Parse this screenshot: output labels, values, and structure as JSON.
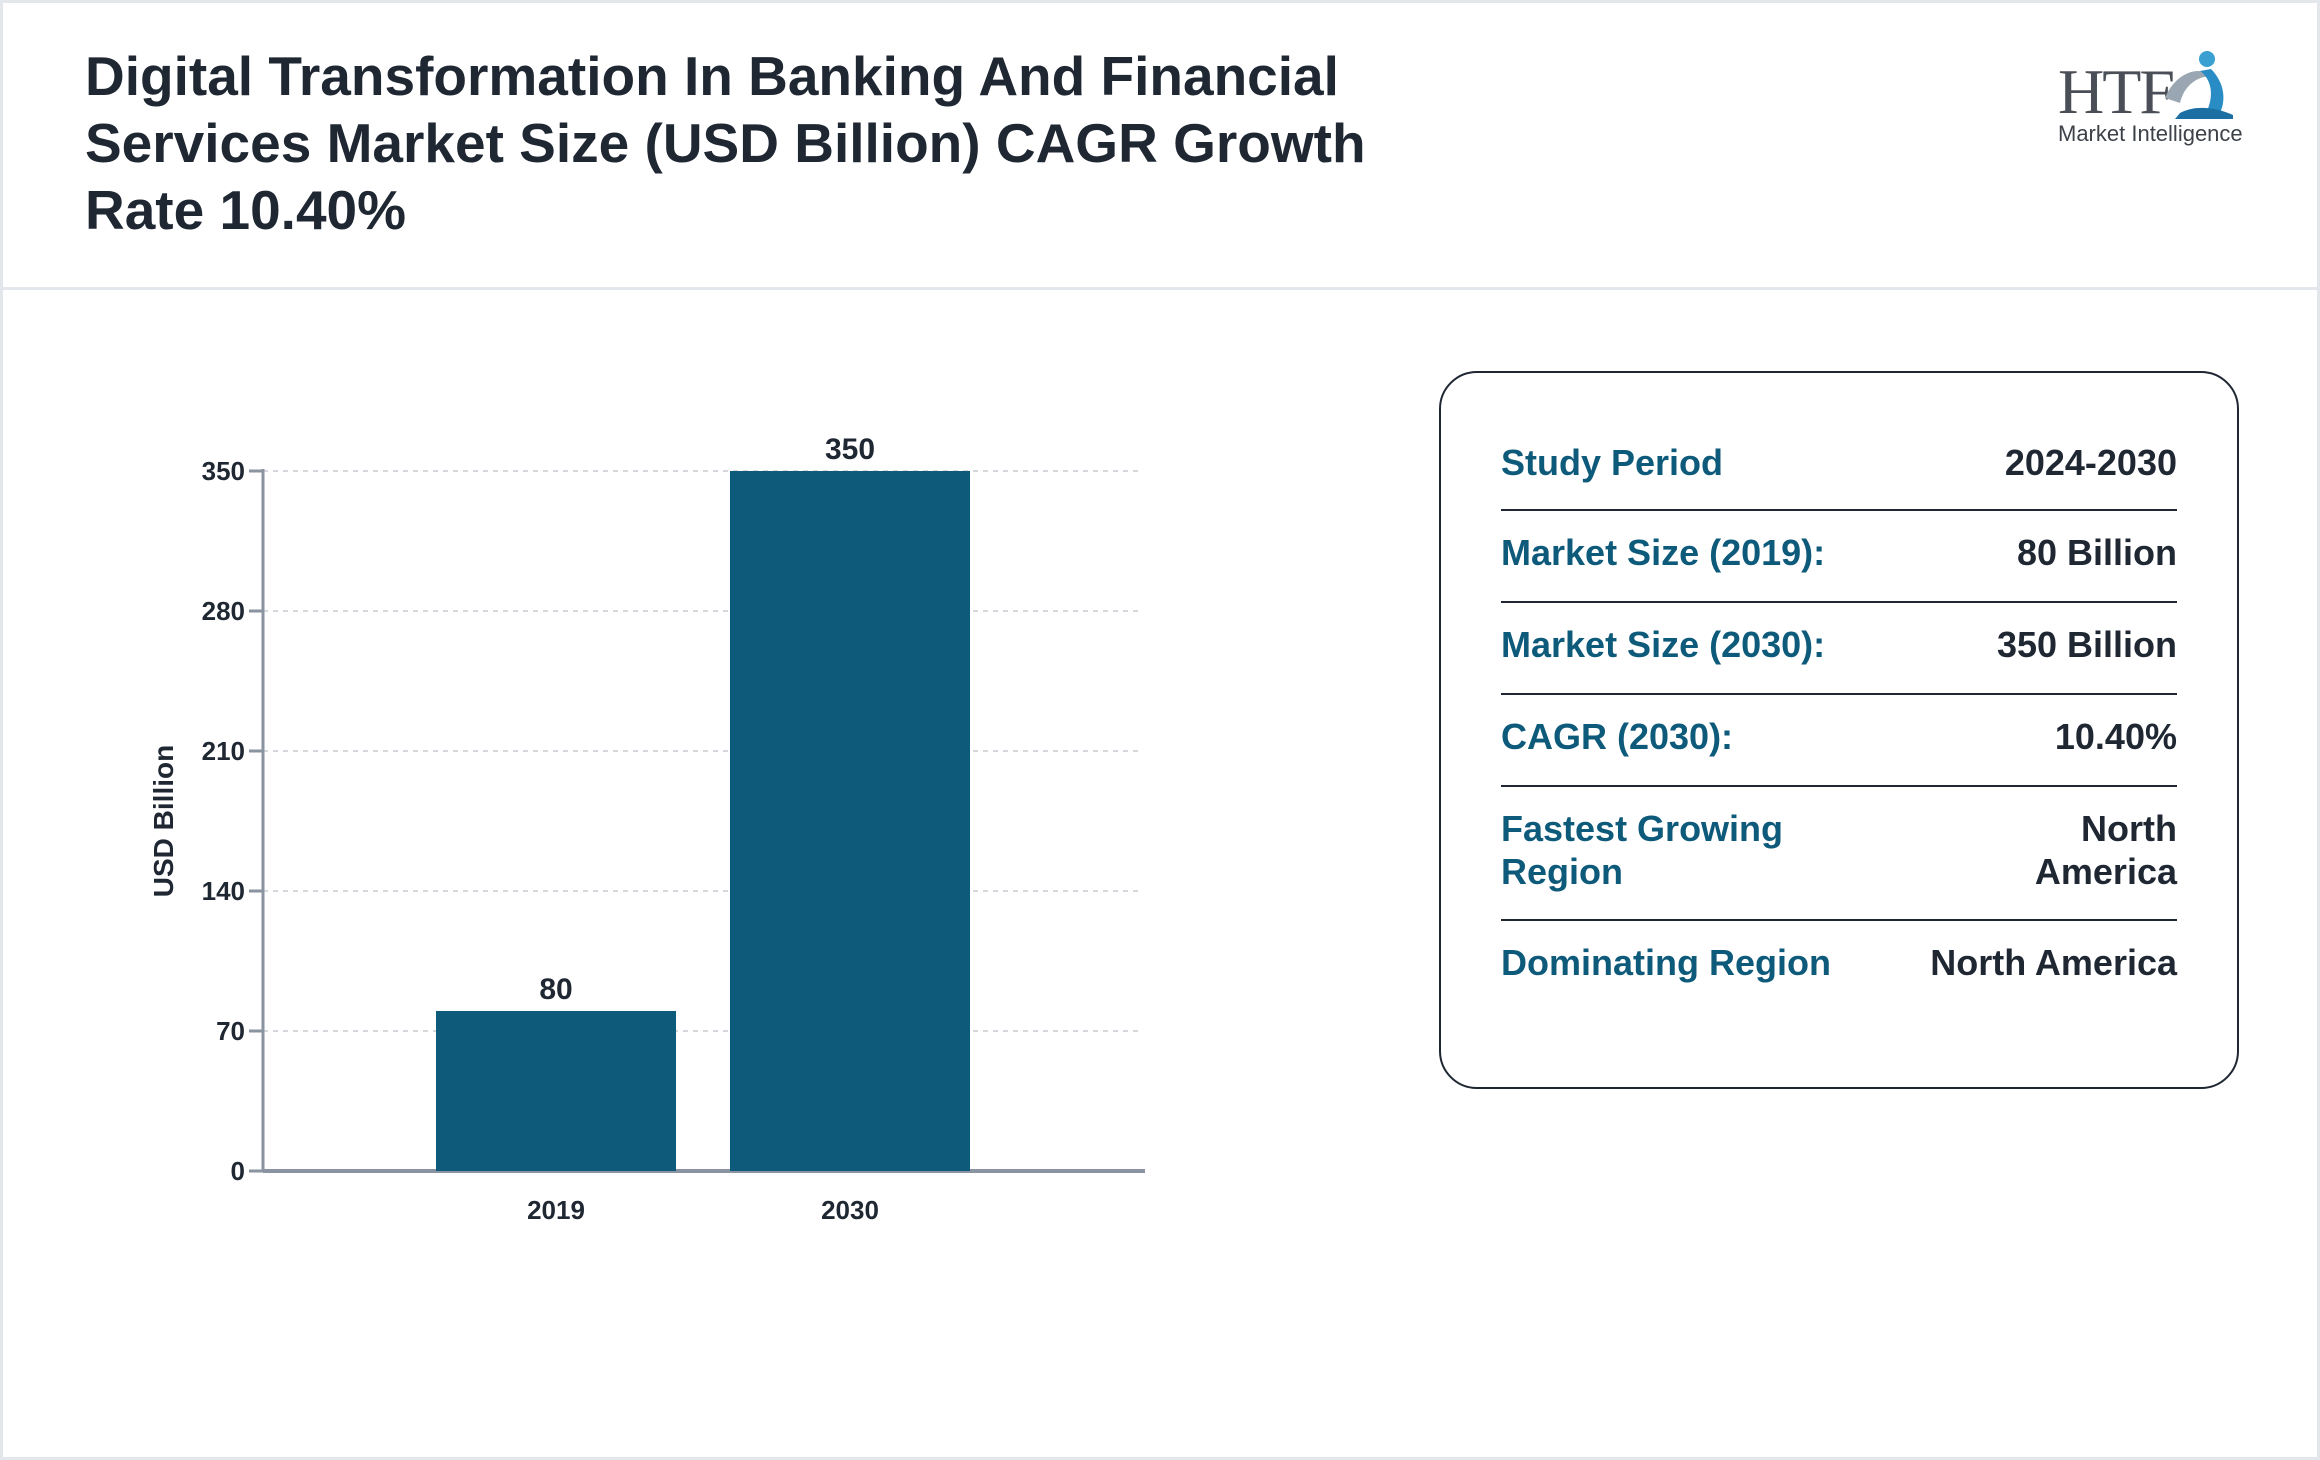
{
  "title": "Digital Transformation In Banking And Financial Services Market Size (USD Billion) CAGR Growth Rate 10.40%",
  "logo": {
    "text": "HTF",
    "subtitle": "Market Intelligence"
  },
  "chart_data": {
    "type": "bar",
    "categories": [
      "2019",
      "2030"
    ],
    "values": [
      80,
      350
    ],
    "title": "",
    "xlabel": "",
    "ylabel": "USD Billion",
    "ylim": [
      0,
      350
    ],
    "yticks": [
      0,
      70,
      140,
      210,
      280,
      350
    ],
    "data_labels": [
      "80",
      "350"
    ],
    "grid": true,
    "bar_color": "#0e5a7a"
  },
  "summary": [
    {
      "label": "Study Period",
      "value": "2024-2030"
    },
    {
      "label": "Market Size (2019):",
      "value": "80 Billion"
    },
    {
      "label": "Market Size (2030):",
      "value": "350 Billion"
    },
    {
      "label": "CAGR (2030):",
      "value": "10.40%"
    },
    {
      "label": "Fastest Growing Region",
      "value": "North America"
    },
    {
      "label": "Dominating Region",
      "value": "North America"
    }
  ]
}
